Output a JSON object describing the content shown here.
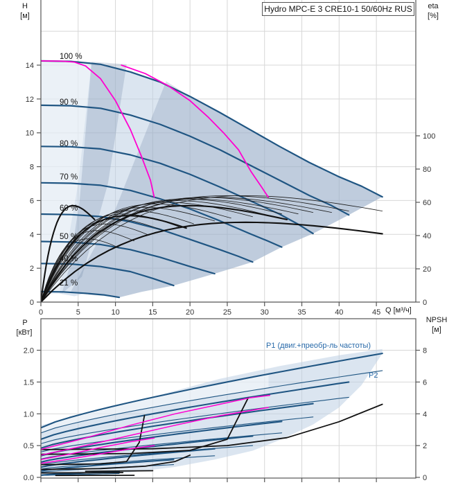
{
  "title_box": "Hydro MPC-E 3 CRE10-1 50/60Hz RUS",
  "colors": {
    "curve_blue": "#1f5582",
    "duty_magenta": "#ff00d0",
    "efficiency_black": "#1a1a1a",
    "envelope_base": "rgba(190,208,228,0.55)",
    "envelope_dark": "rgba(90,120,155,0.22)",
    "envelope_light": "rgba(255,255,255,0.45)",
    "grid": "#d7d7d7",
    "axis": "#555555",
    "tick_text": "#333333",
    "label_blue": "#2668a8"
  },
  "chart_data": [
    {
      "type": "line",
      "id": "head-chart",
      "title": "Hydro MPC-E 3 CRE10-1 50/60Hz RUS",
      "left_axis": {
        "label": "H",
        "unit": "[м]",
        "ticks": [
          "0",
          "2",
          "4",
          "6",
          "8",
          "10",
          "12",
          "14"
        ],
        "tick_values": [
          0,
          2,
          4,
          6,
          8,
          10,
          12,
          14
        ],
        "grid_values": [
          2,
          4,
          6,
          8,
          10,
          12,
          14,
          16
        ]
      },
      "right_axis": {
        "label": "eta",
        "unit": "[%]",
        "ticks": [
          "0",
          "20",
          "40",
          "60",
          "80",
          "100"
        ],
        "tick_values": [
          0,
          20,
          40,
          60,
          80,
          100
        ]
      },
      "x_axis": {
        "label": "Q [м³/ч]",
        "ticks": [
          "0",
          "5",
          "10",
          "15",
          "20",
          "25",
          "30",
          "35",
          "40",
          "45"
        ],
        "tick_values": [
          0,
          5,
          10,
          15,
          20,
          25,
          30,
          35,
          40,
          45
        ],
        "range": [
          0,
          50.3
        ]
      },
      "speed_curves": [
        {
          "label": "100 %",
          "points": [
            [
              0,
              14.25
            ],
            [
              4,
              14.22
            ],
            [
              8,
              14.05
            ],
            [
              12,
              13.6
            ],
            [
              16,
              13.0
            ],
            [
              20,
              12.15
            ],
            [
              24,
              11.2
            ],
            [
              28,
              10.2
            ],
            [
              32,
              9.2
            ],
            [
              36,
              8.25
            ],
            [
              40,
              7.4
            ],
            [
              43,
              6.85
            ],
            [
              45.8,
              6.22
            ]
          ]
        },
        {
          "label": "90 %",
          "points": [
            [
              0,
              11.63
            ],
            [
              4,
              11.6
            ],
            [
              8,
              11.45
            ],
            [
              12,
              11.05
            ],
            [
              16,
              10.5
            ],
            [
              20,
              9.8
            ],
            [
              24,
              9.0
            ],
            [
              28,
              8.1
            ],
            [
              32,
              7.2
            ],
            [
              36,
              6.3
            ],
            [
              39,
              5.7
            ],
            [
              41.3,
              5.15
            ]
          ]
        },
        {
          "label": "80 %",
          "points": [
            [
              0,
              9.2
            ],
            [
              4,
              9.18
            ],
            [
              8,
              9.05
            ],
            [
              12,
              8.7
            ],
            [
              16,
              8.2
            ],
            [
              20,
              7.55
            ],
            [
              24,
              6.8
            ],
            [
              28,
              6.0
            ],
            [
              32,
              5.2
            ],
            [
              34.5,
              4.6
            ],
            [
              36.5,
              4.05
            ]
          ]
        },
        {
          "label": "70 %",
          "points": [
            [
              0,
              7.05
            ],
            [
              4,
              7.02
            ],
            [
              8,
              6.9
            ],
            [
              12,
              6.6
            ],
            [
              16,
              6.1
            ],
            [
              20,
              5.5
            ],
            [
              24,
              4.8
            ],
            [
              28,
              4.05
            ],
            [
              30.5,
              3.6
            ],
            [
              32.3,
              3.25
            ]
          ]
        },
        {
          "label": "60 %",
          "points": [
            [
              0,
              5.2
            ],
            [
              4,
              5.17
            ],
            [
              8,
              5.05
            ],
            [
              12,
              4.75
            ],
            [
              16,
              4.3
            ],
            [
              20,
              3.7
            ],
            [
              24,
              3.1
            ],
            [
              26.5,
              2.7
            ],
            [
              28.4,
              2.37
            ]
          ]
        },
        {
          "label": "50 %",
          "points": [
            [
              0,
              3.58
            ],
            [
              4,
              3.55
            ],
            [
              8,
              3.4
            ],
            [
              12,
              3.1
            ],
            [
              16,
              2.65
            ],
            [
              20,
              2.1
            ],
            [
              23.3,
              1.68
            ]
          ]
        },
        {
          "label": "40 %",
          "points": [
            [
              0,
              2.28
            ],
            [
              4,
              2.25
            ],
            [
              8,
              2.1
            ],
            [
              12,
              1.8
            ],
            [
              15,
              1.4
            ],
            [
              17.8,
              0.98
            ]
          ]
        },
        {
          "label": "21 %",
          "points": [
            [
              0,
              0.62
            ],
            [
              3,
              0.6
            ],
            [
              6,
              0.52
            ],
            [
              8.5,
              0.42
            ],
            [
              10.5,
              0.28
            ]
          ]
        }
      ],
      "duty_curves": [
        {
          "points": [
            [
              0,
              14.25
            ],
            [
              3,
              14.23
            ],
            [
              4.5,
              14.18
            ],
            [
              6,
              13.95
            ],
            [
              8,
              13.2
            ],
            [
              10,
              11.9
            ],
            [
              12,
              10.2
            ],
            [
              13.5,
              8.6
            ],
            [
              14.7,
              7.2
            ],
            [
              15.2,
              6.2
            ]
          ]
        },
        {
          "points": [
            [
              10.8,
              14.0
            ],
            [
              14,
              13.5
            ],
            [
              17,
              12.8
            ],
            [
              20,
              11.9
            ],
            [
              22.5,
              10.9
            ],
            [
              24.5,
              10.0
            ],
            [
              26.5,
              9.0
            ],
            [
              28.2,
              7.7
            ],
            [
              29.6,
              6.8
            ],
            [
              30.5,
              6.2
            ]
          ]
        }
      ],
      "efficiency_thin": [
        [
          10.5,
          38
        ],
        [
          12.5,
          43
        ],
        [
          14.5,
          47
        ],
        [
          16.5,
          50
        ],
        [
          18.5,
          53
        ],
        [
          20.5,
          55
        ],
        [
          23.3,
          57
        ],
        [
          25.5,
          59
        ],
        [
          28.4,
          60
        ],
        [
          30.5,
          61
        ],
        [
          32.3,
          62
        ],
        [
          34.5,
          62
        ],
        [
          36.5,
          63
        ],
        [
          39,
          63
        ],
        [
          41.3,
          64
        ],
        [
          45.8,
          64
        ]
      ],
      "efficiency_thick": [
        [
          7.2,
          58
        ],
        [
          19.5,
          52
        ],
        [
          33,
          58
        ],
        [
          45.8,
          48
        ]
      ],
      "envelope_return": [
        [
          45.8,
          6.22
        ],
        [
          41.3,
          5.15
        ],
        [
          36.5,
          4.05
        ],
        [
          32.3,
          3.25
        ],
        [
          28.4,
          2.37
        ],
        [
          23.3,
          1.68
        ],
        [
          17.8,
          0.98
        ],
        [
          13.5,
          0.6
        ],
        [
          10.5,
          0.28
        ],
        [
          8.5,
          0.42
        ],
        [
          6,
          0.52
        ],
        [
          4.5,
          0.35
        ],
        [
          2.5,
          0.5
        ],
        [
          0,
          0.45
        ]
      ],
      "light_wedge": [
        [
          0,
          14.25
        ],
        [
          6.8,
          14.2
        ],
        [
          5,
          7
        ],
        [
          3,
          2
        ],
        [
          2.5,
          0.5
        ],
        [
          0,
          0.45
        ]
      ],
      "dark_wedge": [
        [
          6.8,
          14.2
        ],
        [
          11.5,
          14.05
        ],
        [
          9,
          7
        ],
        [
          5.5,
          1.5
        ],
        [
          2.8,
          0.5
        ],
        [
          3.8,
          2.0
        ],
        [
          5.2,
          6
        ]
      ],
      "dark_right": [
        [
          16.8,
          13.05
        ],
        [
          20,
          12.15
        ],
        [
          24,
          11.2
        ],
        [
          28,
          10.2
        ],
        [
          32,
          9.2
        ],
        [
          36,
          8.25
        ],
        [
          40,
          7.4
        ],
        [
          43,
          6.85
        ],
        [
          45.8,
          6.22
        ],
        [
          41.3,
          5.15
        ],
        [
          36.5,
          4.05
        ],
        [
          32.3,
          3.25
        ],
        [
          28.4,
          2.37
        ],
        [
          23.3,
          1.68
        ],
        [
          17.8,
          0.98
        ],
        [
          13.5,
          0.6
        ],
        [
          10.5,
          0.28
        ],
        [
          6,
          0.45
        ],
        [
          4,
          0.6
        ],
        [
          10,
          5.5
        ]
      ]
    },
    {
      "type": "line",
      "id": "power-npsh-chart",
      "left_axis": {
        "label": "P",
        "unit": "[кВт]",
        "ticks": [
          "0.0",
          "0.5",
          "1.0",
          "1.5",
          "2.0"
        ],
        "tick_values": [
          0,
          0.5,
          1.0,
          1.5,
          2.0
        ]
      },
      "right_axis": {
        "label": "NPSH",
        "unit": "[м]",
        "ticks": [
          "0",
          "2",
          "4",
          "6",
          "8"
        ],
        "tick_values": [
          0,
          2,
          4,
          6,
          8
        ]
      },
      "labels": {
        "p1": "P1 (двиг.+преобр-ль частоты)",
        "p2": "P2"
      },
      "p1_curves": [
        {
          "p0": 0.78,
          "pEnd": 1.95,
          "qEnd": 45.8
        },
        {
          "p0": 0.6,
          "pEnd": 1.5,
          "qEnd": 41.3
        },
        {
          "p0": 0.46,
          "pEnd": 1.16,
          "qEnd": 36.5
        },
        {
          "p0": 0.34,
          "pEnd": 0.88,
          "qEnd": 32.3
        },
        {
          "p0": 0.24,
          "pEnd": 0.65,
          "qEnd": 28.4
        },
        {
          "p0": 0.16,
          "pEnd": 0.45,
          "qEnd": 23.3
        },
        {
          "p0": 0.1,
          "pEnd": 0.28,
          "qEnd": 17.8
        },
        {
          "p0": 0.035,
          "pEnd": 0.09,
          "qEnd": 10.5
        }
      ],
      "p2_curves": [
        {
          "p0": 0.7,
          "pEnd": 1.68,
          "qEnd": 45.8
        },
        {
          "p0": 0.53,
          "pEnd": 1.26,
          "qEnd": 41.3
        },
        {
          "p0": 0.4,
          "pEnd": 0.95,
          "qEnd": 36.5
        },
        {
          "p0": 0.29,
          "pEnd": 0.7,
          "qEnd": 32.3
        },
        {
          "p0": 0.2,
          "pEnd": 0.5,
          "qEnd": 28.4
        },
        {
          "p0": 0.13,
          "pEnd": 0.34,
          "qEnd": 23.3
        },
        {
          "p0": 0.08,
          "pEnd": 0.2,
          "qEnd": 17.8
        },
        {
          "p0": 0.03,
          "pEnd": 0.06,
          "qEnd": 10.5
        }
      ],
      "duty_curves": [
        {
          "points": [
            [
              0,
              0.44
            ],
            [
              6,
              0.62
            ],
            [
              12,
              0.82
            ],
            [
              18,
              1.0
            ],
            [
              24,
              1.15
            ],
            [
              28,
              1.25
            ],
            [
              30.7,
              1.29
            ]
          ]
        },
        {
          "points": [
            [
              0,
              0.35
            ],
            [
              6,
              0.5
            ],
            [
              12,
              0.66
            ],
            [
              18,
              0.82
            ],
            [
              24,
              0.97
            ],
            [
              28,
              1.05
            ],
            [
              30.5,
              1.1
            ]
          ]
        },
        {
          "points": [
            [
              0,
              0.28
            ],
            [
              4,
              0.37
            ],
            [
              8,
              0.47
            ],
            [
              12,
              0.56
            ],
            [
              15.2,
              0.62
            ]
          ]
        },
        {
          "points": [
            [
              0,
              0.22
            ],
            [
              4,
              0.29
            ],
            [
              8,
              0.37
            ],
            [
              12,
              0.45
            ],
            [
              15.2,
              0.5
            ]
          ]
        }
      ],
      "npsh_curves": [
        {
          "points": [
            [
              0,
              1.75
            ],
            [
              15,
              1.8
            ],
            [
              25,
              2.0
            ],
            [
              33,
              2.5
            ],
            [
              40,
              3.5
            ],
            [
              45.8,
              4.6
            ]
          ]
        },
        {
          "points": [
            [
              0,
              1.45
            ],
            [
              12,
              1.5
            ],
            [
              20,
              1.7
            ],
            [
              25,
              2.4
            ],
            [
              27.8,
              5.0
            ]
          ]
        },
        {
          "points": [
            [
              0,
              0.8
            ],
            [
              8,
              0.85
            ],
            [
              11.5,
              1.0
            ],
            [
              13.2,
              2.2
            ],
            [
              13.9,
              3.9
            ]
          ]
        },
        {
          "points": [
            [
              0,
              0.5
            ],
            [
              8,
              0.55
            ],
            [
              14,
              0.7
            ],
            [
              18,
              1.0
            ],
            [
              20,
              1.4
            ]
          ]
        },
        {
          "points": [
            [
              0,
              0.28
            ],
            [
              11,
              0.3
            ]
          ]
        },
        {
          "points": [
            [
              2,
              0.12
            ],
            [
              12.5,
              0.13
            ]
          ]
        },
        {
          "points": [
            [
              6,
              0.38
            ],
            [
              15,
              0.42
            ]
          ]
        }
      ],
      "envelope_top": [
        [
          0,
          0.82
        ],
        [
          8,
          1.05
        ],
        [
          16,
          1.3
        ],
        [
          24,
          1.55
        ],
        [
          32,
          1.75
        ],
        [
          40,
          1.92
        ],
        [
          45.8,
          2.02
        ]
      ],
      "envelope_return": [
        [
          45.8,
          1.95
        ],
        [
          43,
          1.45
        ],
        [
          40,
          1.1
        ],
        [
          36.5,
          0.83
        ],
        [
          32.3,
          0.6
        ],
        [
          28.4,
          0.42
        ],
        [
          23.3,
          0.28
        ],
        [
          17.8,
          0.16
        ],
        [
          12,
          0.08
        ],
        [
          6,
          0.035
        ],
        [
          0,
          0.02
        ]
      ]
    }
  ]
}
